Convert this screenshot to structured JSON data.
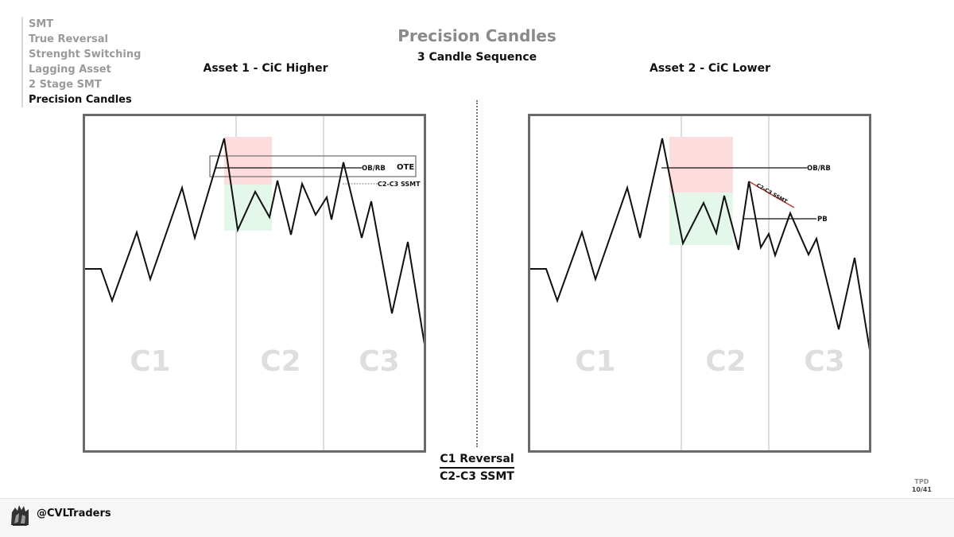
{
  "nav": {
    "items": [
      {
        "label": "SMT",
        "active": false
      },
      {
        "label": "True Reversal",
        "active": false
      },
      {
        "label": "Strenght Switching",
        "active": false
      },
      {
        "label": "Lagging Asset",
        "active": false
      },
      {
        "label": "2 Stage SMT",
        "active": false
      },
      {
        "label": "Precision Candles",
        "active": true
      }
    ]
  },
  "header": {
    "title": "Precision Candles",
    "subtitle": "3 Candle Sequence"
  },
  "asset1": {
    "title": "Asset 1 - CiC Higher",
    "candles": [
      "C1",
      "C2",
      "C3"
    ],
    "labels": {
      "ob_rb": "OB/RB",
      "ote": "OTE",
      "ssmt": "C2-C3 SSMT"
    }
  },
  "asset2": {
    "title": "Asset 2 - CiC Lower",
    "candles": [
      "C1",
      "C2",
      "C3"
    ],
    "labels": {
      "ob_rb": "OB/RB",
      "ssmt": "C2-C3 SSMT",
      "pb": "PB"
    }
  },
  "conclusion": {
    "top": "C1 Reversal",
    "bottom": "C2-C3 SSMT"
  },
  "page": {
    "tag": "TPD",
    "number": "10/41"
  },
  "footer": {
    "handle": "@CVLTraders"
  },
  "colors": {
    "premium_zone": "#fcdcdc",
    "discount_zone": "#e3f7ea",
    "ssmt_line": "#c0392b",
    "panel_border": "#6d6a66"
  }
}
